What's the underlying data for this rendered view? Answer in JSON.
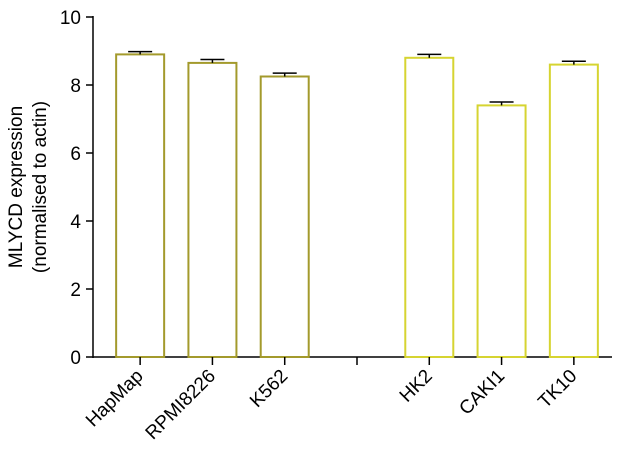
{
  "chart_data": {
    "type": "bar",
    "ylabel": [
      "MLYCD expression",
      "(normalised to actin)"
    ],
    "categories": [
      "HapMap",
      "RPMI8226",
      "K562",
      null,
      "HK2",
      "CAKI1",
      "TK10"
    ],
    "values": [
      8.9,
      8.65,
      8.25,
      null,
      8.8,
      7.4,
      8.6
    ],
    "errors": [
      0.08,
      0.1,
      0.1,
      null,
      0.1,
      0.1,
      0.1
    ],
    "colors": [
      "#a39a2c",
      "#a39a2c",
      "#a39a2c",
      null,
      "#d6d431",
      "#d6d431",
      "#d6d431"
    ],
    "ylim": [
      0,
      10
    ],
    "yticks": [
      0,
      2,
      4,
      6,
      8,
      10
    ]
  }
}
